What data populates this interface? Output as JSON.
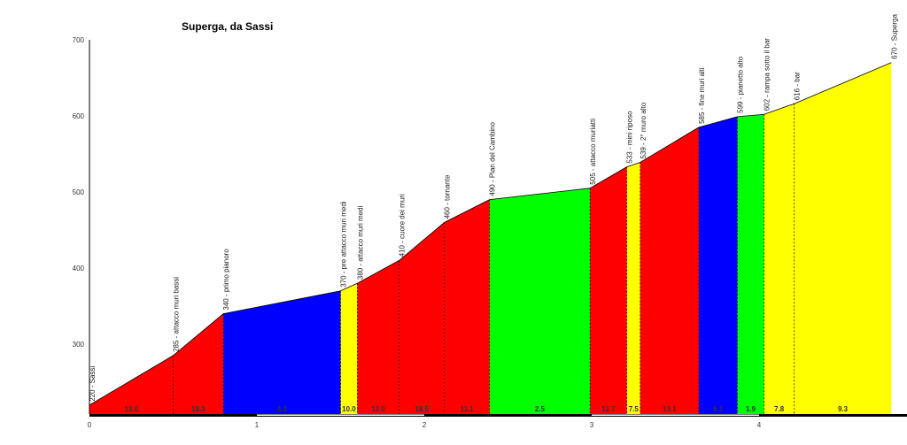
{
  "chart_data": {
    "type": "area",
    "title": "Superga, da Sassi",
    "xlabel": "",
    "ylabel": "",
    "xlim": [
      0,
      4.86
    ],
    "ylim": [
      210,
      700
    ],
    "x_ticks": [
      "0",
      "1",
      "2",
      "3",
      "4"
    ],
    "y_ticks": [
      "300",
      "400",
      "500",
      "600",
      "700"
    ],
    "points": [
      {
        "km": 0.0,
        "alt": 220,
        "label": "220 - Sassi"
      },
      {
        "km": 0.5,
        "alt": 285,
        "label": "285 - attacco muri bassi"
      },
      {
        "km": 0.8,
        "alt": 340,
        "label": "340 - primo pianoro"
      },
      {
        "km": 1.5,
        "alt": 370,
        "label": "370 - pre attacco muri medi"
      },
      {
        "km": 1.6,
        "alt": 380,
        "label": "380 - attacco muri medi"
      },
      {
        "km": 1.85,
        "alt": 410,
        "label": "410 - cuore dei muri"
      },
      {
        "km": 2.12,
        "alt": 460,
        "label": "460 - tornante"
      },
      {
        "km": 2.39,
        "alt": 490,
        "label": "490 - Pian del Cambino"
      },
      {
        "km": 2.99,
        "alt": 505,
        "label": "505 - attacco muriatti"
      },
      {
        "km": 3.21,
        "alt": 533,
        "label": "533 - mini riposo"
      },
      {
        "km": 3.29,
        "alt": 539,
        "label": "539 - 2° muro alto"
      },
      {
        "km": 3.64,
        "alt": 585,
        "label": "585 - fine muri alti"
      },
      {
        "km": 3.87,
        "alt": 599,
        "label": "599 - pianetto alto"
      },
      {
        "km": 4.03,
        "alt": 602,
        "label": "602 - rampa sotto il bar"
      },
      {
        "km": 4.21,
        "alt": 616,
        "label": "616 - bar"
      },
      {
        "km": 4.79,
        "alt": 670,
        "label": "670 - Superga"
      }
    ],
    "segments": [
      {
        "gradient": "13.0",
        "color": "#ff0000"
      },
      {
        "gradient": "18.3",
        "color": "#ff0000"
      },
      {
        "gradient": "4.3",
        "color": "#0000ff"
      },
      {
        "gradient": "10.0",
        "color": "#ffff00"
      },
      {
        "gradient": "12.0",
        "color": "#ff0000"
      },
      {
        "gradient": "18.5",
        "color": "#ff0000"
      },
      {
        "gradient": "11.1",
        "color": "#ff0000"
      },
      {
        "gradient": "2.5",
        "color": "#00ff00"
      },
      {
        "gradient": "12.7",
        "color": "#ff0000"
      },
      {
        "gradient": "7.5",
        "color": "#ffff00"
      },
      {
        "gradient": "13.1",
        "color": "#ff0000"
      },
      {
        "gradient": "6.1",
        "color": "#0000ff"
      },
      {
        "gradient": "1.9",
        "color": "#00ff00"
      },
      {
        "gradient": "7.8",
        "color": "#ffff00"
      },
      {
        "gradient": "9.3",
        "color": "#ffff00"
      }
    ]
  }
}
